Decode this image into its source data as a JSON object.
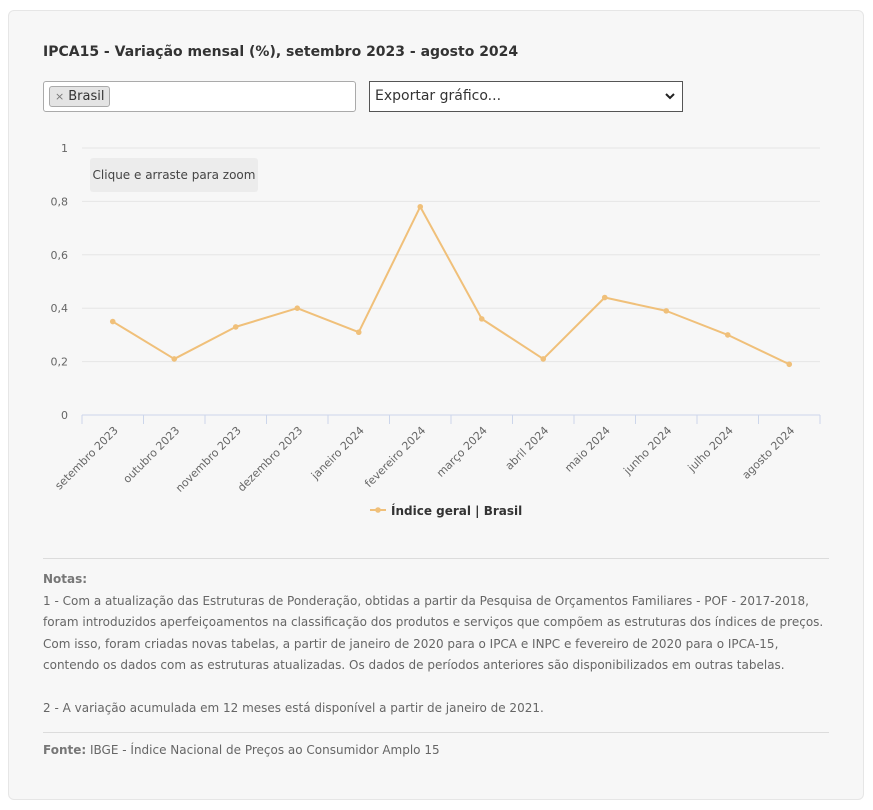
{
  "title": "IPCA15 - Variação mensal (%), setembro 2023 - agosto 2024",
  "filter": {
    "selected_tag": "Brasil",
    "remove_glyph": "×"
  },
  "export_select": {
    "value": "Exportar gráfico...",
    "chevron": "⌄"
  },
  "zoom_hint": "Clique e arraste para zoom",
  "chart_data": {
    "type": "line",
    "categories": [
      "setembro 2023",
      "outubro 2023",
      "novembro 2023",
      "dezembro 2023",
      "janeiro 2024",
      "fevereiro 2024",
      "março 2024",
      "abril 2024",
      "maio 2024",
      "junho 2024",
      "julho 2024",
      "agosto 2024"
    ],
    "series": [
      {
        "name": "Índice geral | Brasil",
        "values": [
          0.35,
          0.21,
          0.33,
          0.4,
          0.31,
          0.78,
          0.36,
          0.21,
          0.44,
          0.39,
          0.3,
          0.19
        ],
        "color": "#f0c07a"
      }
    ],
    "ylim": [
      0,
      1
    ],
    "yticks": [
      "0",
      "0,2",
      "0,4",
      "0,6",
      "0,8",
      "1"
    ],
    "grid": true,
    "legend": "bottom-center"
  },
  "notes": {
    "label": "Notas:",
    "note1": "1 - Com a atualização das Estruturas de Ponderação, obtidas a partir da Pesquisa de Orçamentos Familiares - POF - 2017-2018, foram introduzidos aperfeiçoamentos na classificação dos produtos e serviços que compõem as estruturas dos índices de preços. Com isso, foram criadas novas tabelas, a partir de janeiro de 2020 para o IPCA e INPC e fevereiro de 2020 para o IPCA-15, contendo os dados com as estruturas atualizadas. Os dados de períodos anteriores são disponibilizados em outras tabelas.",
    "note2": "2 - A variação acumulada em 12 meses está disponível a partir de janeiro de 2021."
  },
  "source": {
    "label": "Fonte:",
    "text": "IBGE - Índice Nacional de Preços ao Consumidor Amplo 15"
  }
}
